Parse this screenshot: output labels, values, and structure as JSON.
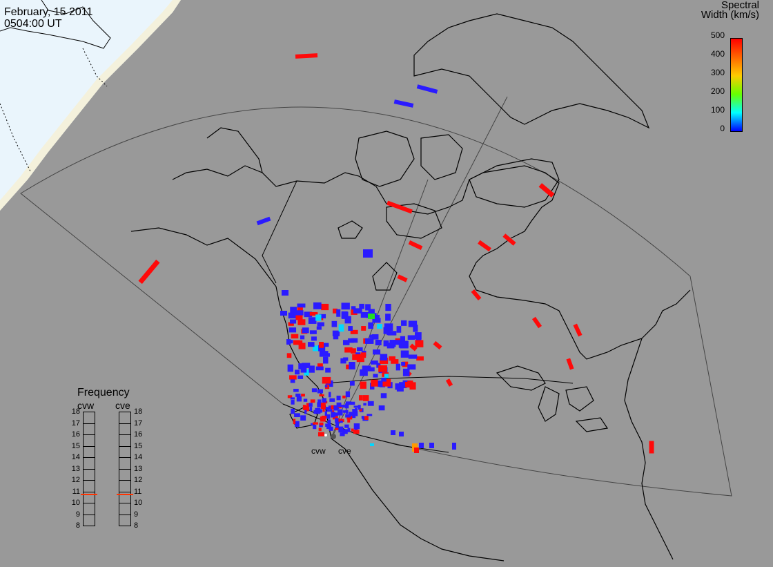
{
  "title": {
    "date": "February, 15 2011",
    "time": "0504:00 UT"
  },
  "colorbar": {
    "title_line1": "Spectral",
    "title_line2": "Width (km/s)",
    "ticks": [
      "500",
      "400",
      "300",
      "200",
      "100",
      "0"
    ],
    "colors": [
      "#0000ff",
      "#00ffff",
      "#00ff00",
      "#ffff00",
      "#ff8000",
      "#ff0000"
    ]
  },
  "frequency": {
    "title": "Frequency",
    "radars": [
      "cvw",
      "cve"
    ],
    "ticks": [
      "18",
      "17",
      "16",
      "15",
      "14",
      "13",
      "12",
      "11",
      "10",
      "9",
      "8"
    ],
    "current_mhz": {
      "cvw": 10.7,
      "cve": 10.7
    },
    "marker_color": "#ff3300"
  },
  "sites": {
    "cvw": "cvw",
    "cve": "cve"
  },
  "colors": {
    "ocean": "#999999",
    "land_outline": "#000000",
    "fov_outline": "#444444",
    "terminator_day": "#e8f4fb",
    "terminator_edge": "#f3f0dc",
    "low_width": "#2222ff",
    "high_width": "#ff0000"
  }
}
